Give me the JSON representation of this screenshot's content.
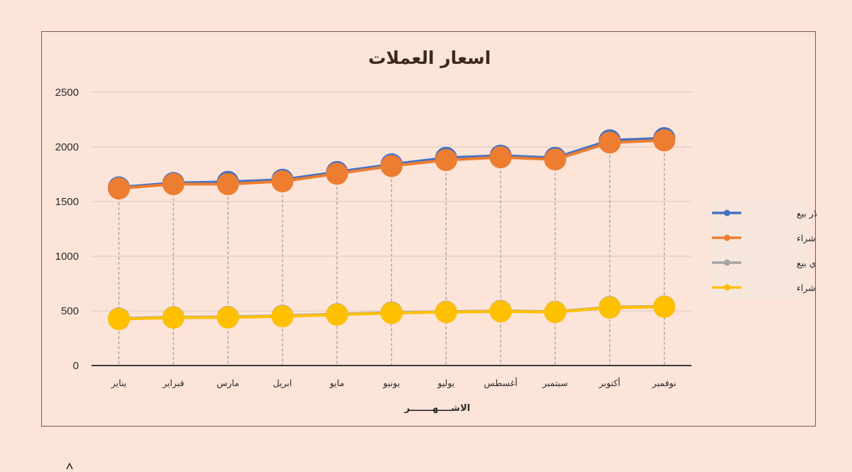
{
  "chart_data": {
    "type": "line",
    "title": "اسعار العملات",
    "xlabel": "الاشــــهـــــــر",
    "ylabel": "",
    "ylim": [
      0,
      2500
    ],
    "yticks": [
      0,
      500,
      1000,
      1500,
      2000,
      2500
    ],
    "grid": true,
    "drop_lines": true,
    "legend_position": "right",
    "categories": [
      "يناير",
      "فبراير",
      "مارس",
      "ابريل",
      "مايو",
      "يونيو",
      "يوليو",
      "أغسطس",
      "سبتمبر",
      "أكتوبر",
      "نوفمبر"
    ],
    "series": [
      {
        "name": "دولار بيع",
        "color": "#4472c4",
        "values": [
          1630,
          1670,
          1680,
          1700,
          1770,
          1840,
          1900,
          1920,
          1900,
          2060,
          2080
        ]
      },
      {
        "name": "دولار شراء",
        "color": "#ed7d31",
        "values": [
          1620,
          1660,
          1660,
          1685,
          1755,
          1825,
          1880,
          1905,
          1885,
          2040,
          2060
        ]
      },
      {
        "name": "سعودي بيع",
        "color": "#a5a5a5",
        "values": [
          430,
          442,
          445,
          455,
          470,
          485,
          492,
          500,
          492,
          535,
          540
        ]
      },
      {
        "name": "سعودي شراء",
        "color": "#ffc000",
        "values": [
          425,
          438,
          440,
          450,
          465,
          480,
          488,
          495,
          488,
          530,
          537
        ]
      }
    ]
  }
}
